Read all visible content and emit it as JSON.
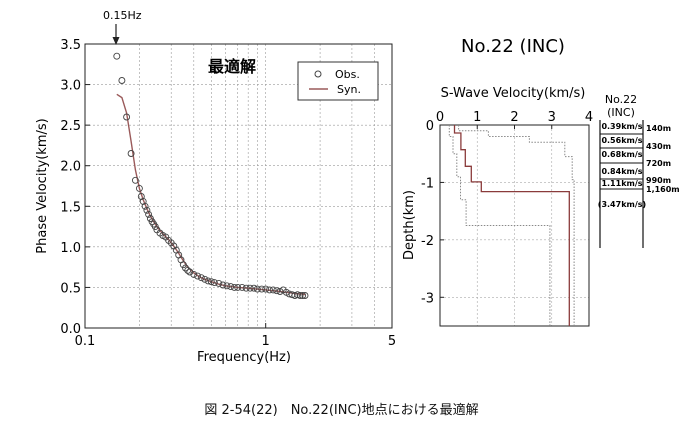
{
  "figure_caption": "図 2-54(22)　No.22(INC)地点における最適解",
  "chart_data": [
    {
      "type": "scatter",
      "title": "最適解",
      "annotation": "0.15Hz",
      "xlabel": "Frequency(Hz)",
      "ylabel": "Phase Velocity(km/s)",
      "xscale": "log",
      "xlim": [
        0.1,
        5
      ],
      "ylim": [
        0,
        3.5
      ],
      "x_tick_labels": [
        "0.1",
        "1",
        "5"
      ],
      "y_tick_labels": [
        "0.0",
        "0.5",
        "1.0",
        "1.5",
        "2.0",
        "2.5",
        "3.0",
        "3.5"
      ],
      "grid": true,
      "legend_position": "top-right",
      "legend": [
        "Obs.",
        "Syn."
      ],
      "colors": {
        "obs": "#444444",
        "syn": "#9a5a5a",
        "grid": "#9a9a9a"
      },
      "series": [
        {
          "name": "Obs.",
          "marker": "open-circle",
          "x": [
            0.15,
            0.16,
            0.17,
            0.18,
            0.19,
            0.2,
            0.205,
            0.21,
            0.215,
            0.22,
            0.225,
            0.23,
            0.235,
            0.24,
            0.245,
            0.25,
            0.26,
            0.27,
            0.28,
            0.29,
            0.3,
            0.31,
            0.32,
            0.33,
            0.34,
            0.35,
            0.36,
            0.37,
            0.38,
            0.4,
            0.42,
            0.44,
            0.46,
            0.48,
            0.5,
            0.52,
            0.55,
            0.58,
            0.61,
            0.64,
            0.67,
            0.7,
            0.74,
            0.78,
            0.82,
            0.86,
            0.9,
            0.95,
            1.0,
            1.05,
            1.1,
            1.15,
            1.2,
            1.25,
            1.3,
            1.35,
            1.4,
            1.45,
            1.5,
            1.55,
            1.6,
            1.65
          ],
          "y": [
            3.35,
            3.05,
            2.6,
            2.15,
            1.82,
            1.72,
            1.62,
            1.56,
            1.5,
            1.45,
            1.4,
            1.35,
            1.31,
            1.28,
            1.25,
            1.21,
            1.17,
            1.14,
            1.12,
            1.08,
            1.05,
            1.01,
            0.96,
            0.9,
            0.84,
            0.78,
            0.74,
            0.71,
            0.69,
            0.66,
            0.64,
            0.62,
            0.6,
            0.58,
            0.57,
            0.56,
            0.55,
            0.53,
            0.52,
            0.51,
            0.5,
            0.5,
            0.5,
            0.49,
            0.49,
            0.49,
            0.48,
            0.48,
            0.48,
            0.47,
            0.47,
            0.46,
            0.45,
            0.47,
            0.44,
            0.42,
            0.41,
            0.4,
            0.41,
            0.4,
            0.4,
            0.4
          ]
        },
        {
          "name": "Syn.",
          "marker": "line",
          "x": [
            0.15,
            0.16,
            0.17,
            0.18,
            0.19,
            0.2,
            0.21,
            0.22,
            0.23,
            0.24,
            0.25,
            0.27,
            0.29,
            0.31,
            0.33,
            0.35,
            0.37,
            0.4,
            0.43,
            0.46,
            0.5,
            0.55,
            0.6,
            0.7,
            0.8,
            0.9,
            1.0,
            1.1,
            1.2,
            1.3,
            1.4,
            1.5,
            1.6,
            1.65
          ],
          "y": [
            2.88,
            2.84,
            2.65,
            2.3,
            1.95,
            1.72,
            1.58,
            1.47,
            1.38,
            1.31,
            1.25,
            1.16,
            1.09,
            1.01,
            0.92,
            0.83,
            0.75,
            0.68,
            0.63,
            0.6,
            0.57,
            0.54,
            0.52,
            0.5,
            0.49,
            0.48,
            0.47,
            0.46,
            0.45,
            0.44,
            0.43,
            0.42,
            0.42,
            0.41
          ]
        }
      ]
    },
    {
      "type": "line",
      "title": "No.22 (INC)",
      "xlabel": "S-Wave Velocity(km/s)",
      "ylabel": "Depth(km)",
      "xlim": [
        0,
        4
      ],
      "ylim": [
        -3.5,
        0
      ],
      "x_tick_labels": [
        "0",
        "1",
        "2",
        "3",
        "4"
      ],
      "y_tick_labels": [
        "0",
        "-1",
        "-2",
        "-3"
      ],
      "grid": true,
      "colors": {
        "optimum": "#8a3b3b",
        "bounds": "#888888"
      },
      "series": [
        {
          "style": "solid",
          "x": [
            0.39,
            0.39,
            0.56,
            0.56,
            0.68,
            0.68,
            0.84,
            0.84,
            1.11,
            1.11,
            3.47,
            3.47
          ],
          "y": [
            0,
            -0.14,
            -0.14,
            -0.43,
            -0.43,
            -0.72,
            -0.72,
            -0.99,
            -0.99,
            -1.16,
            -1.16,
            -3.5
          ]
        },
        {
          "style": "dotted",
          "x": [
            0.25,
            0.25,
            0.35,
            0.35,
            0.45,
            0.45,
            0.55,
            0.55,
            0.7,
            0.7,
            2.95,
            2.95
          ],
          "y": [
            0,
            -0.2,
            -0.2,
            -0.5,
            -0.5,
            -0.9,
            -0.9,
            -1.3,
            -1.3,
            -1.75,
            -1.75,
            -3.5
          ]
        },
        {
          "style": "dotted",
          "x": [
            0.5,
            0.5,
            1.3,
            1.3,
            2.4,
            2.4,
            3.35,
            3.35,
            3.55,
            3.55,
            3.6,
            3.6
          ],
          "y": [
            0,
            -0.1,
            -0.1,
            -0.2,
            -0.2,
            -0.3,
            -0.3,
            -0.55,
            -0.55,
            -0.95,
            -0.95,
            -3.5
          ]
        }
      ]
    }
  ],
  "column": {
    "title": "No.22\n(INC)",
    "velocities": [
      "0.39km/s",
      "0.56km/s",
      "0.68km/s",
      "0.84km/s",
      "1.11km/s",
      "(3.47km/s)"
    ],
    "depths": [
      "140m",
      "430m",
      "720m",
      "990m",
      "1,160m"
    ]
  }
}
